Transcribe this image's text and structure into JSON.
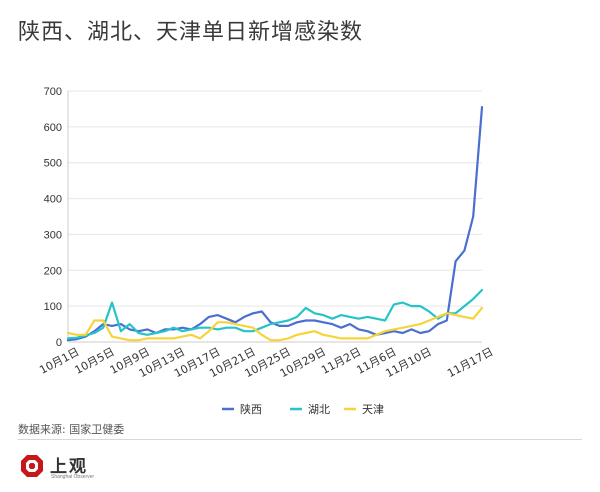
{
  "title": "陕西、湖北、天津单日新增感染数",
  "source": "数据来源: 国家卫健委",
  "logo": {
    "text": "上观",
    "subtext": "Shanghai Observer"
  },
  "colors": {
    "陕西": "#4a6fd0",
    "湖北": "#26c3c8",
    "天津": "#f7d33b"
  },
  "chart_data": {
    "type": "line",
    "title": "陕西、湖北、天津单日新增感染数",
    "xlabel": "",
    "ylabel": "",
    "ylim": [
      0,
      700
    ],
    "yticks": [
      0,
      100,
      200,
      300,
      400,
      500,
      600,
      700
    ],
    "grid": true,
    "legend": "bottom",
    "x": [
      "10月1日",
      "10月2日",
      "10月3日",
      "10月4日",
      "10月5日",
      "10月6日",
      "10月7日",
      "10月8日",
      "10月9日",
      "10月10日",
      "10月11日",
      "10月12日",
      "10月13日",
      "10月14日",
      "10月15日",
      "10月16日",
      "10月17日",
      "10月18日",
      "10月19日",
      "10月20日",
      "10月21日",
      "10月22日",
      "10月23日",
      "10月24日",
      "10月25日",
      "10月26日",
      "10月27日",
      "10月28日",
      "10月29日",
      "10月30日",
      "10月31日",
      "11月1日",
      "11月2日",
      "11月3日",
      "11月4日",
      "11月5日",
      "11月6日",
      "11月7日",
      "11月8日",
      "11月9日",
      "11月10日",
      "11月11日",
      "11月12日",
      "11月13日",
      "11月14日",
      "11月15日",
      "11月16日",
      "11月17日"
    ],
    "tick_labels": [
      "10月1日",
      "10月5日",
      "10月9日",
      "10月13日",
      "10月17日",
      "10月21日",
      "10月25日",
      "10月29日",
      "11月2日",
      "11月6日",
      "11月10日",
      "11月17日"
    ],
    "tick_index": [
      0,
      4,
      8,
      12,
      16,
      20,
      24,
      28,
      32,
      36,
      40,
      47
    ],
    "series": [
      {
        "name": "陕西",
        "values": [
          5,
          8,
          15,
          30,
          50,
          45,
          50,
          35,
          30,
          35,
          25,
          35,
          35,
          40,
          35,
          50,
          70,
          75,
          65,
          55,
          70,
          80,
          85,
          55,
          45,
          45,
          55,
          60,
          60,
          55,
          50,
          40,
          50,
          35,
          30,
          20,
          25,
          30,
          25,
          35,
          25,
          30,
          50,
          60,
          225,
          255,
          350,
          655
        ]
      },
      {
        "name": "湖北",
        "values": [
          10,
          12,
          18,
          25,
          40,
          110,
          30,
          50,
          25,
          20,
          25,
          30,
          40,
          30,
          35,
          40,
          40,
          35,
          40,
          40,
          30,
          30,
          40,
          50,
          55,
          60,
          70,
          95,
          80,
          75,
          65,
          75,
          70,
          65,
          70,
          65,
          60,
          105,
          110,
          100,
          100,
          85,
          65,
          80,
          80,
          100,
          120,
          145
        ]
      },
      {
        "name": "天津",
        "values": [
          25,
          20,
          20,
          60,
          60,
          15,
          10,
          5,
          5,
          10,
          10,
          10,
          10,
          15,
          20,
          10,
          30,
          55,
          55,
          50,
          45,
          40,
          20,
          5,
          5,
          10,
          20,
          25,
          30,
          20,
          15,
          10,
          10,
          10,
          10,
          20,
          30,
          35,
          40,
          45,
          50,
          60,
          70,
          80,
          75,
          70,
          65,
          95
        ]
      }
    ]
  }
}
